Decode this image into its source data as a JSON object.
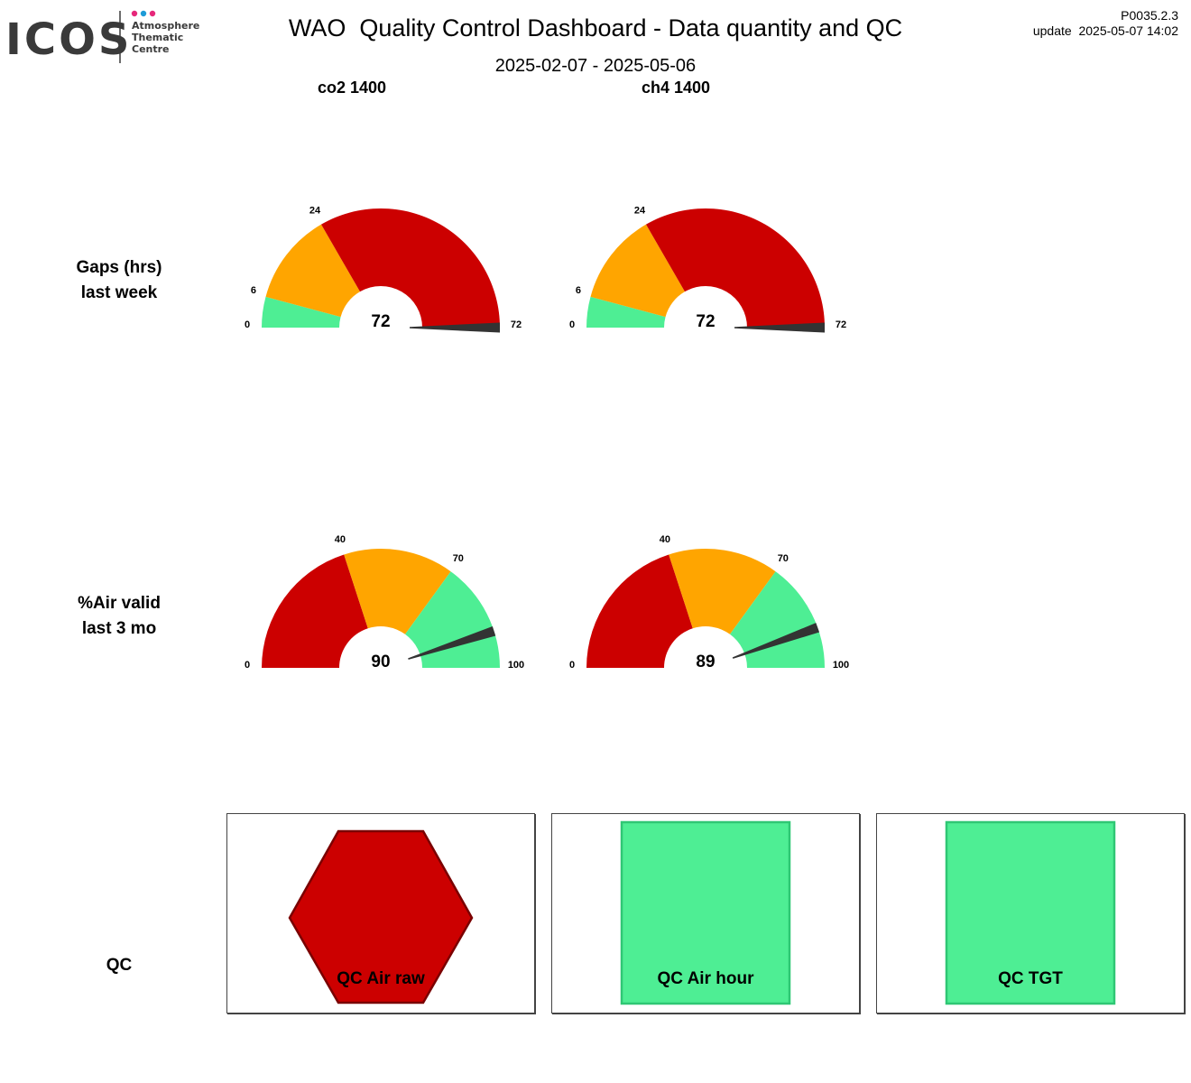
{
  "header": {
    "title": "WAO  Quality Control Dashboard - Data quantity and QC",
    "date_range": "2025-02-07 - 2025-05-06",
    "version": "P0035.2.3",
    "update": "update  2025-05-07 14:02",
    "logo_text": "ICOS",
    "logo_subtitle": [
      "Atmosphere",
      "Thematic",
      "Centre"
    ]
  },
  "columns": [
    "co2 1400",
    "ch4 1400"
  ],
  "rows": {
    "gaps_label": [
      "Gaps (hrs)",
      "last week"
    ],
    "air_label": [
      "%Air valid",
      "last 3 mo"
    ],
    "qc_label": "QC"
  },
  "colors": {
    "red": "#CC0000",
    "orange": "#FFA500",
    "green": "#4EEE94",
    "needle": "#333333",
    "logo_pink": "#E6287A",
    "logo_blue": "#1E9BD7"
  },
  "chart_data": [
    {
      "type": "gauge",
      "row": "gaps",
      "column": "co2 1400",
      "min": 0,
      "max": 72,
      "value": 72,
      "value_label": "72",
      "bands": [
        {
          "from": 0,
          "to": 6,
          "color": "green"
        },
        {
          "from": 6,
          "to": 24,
          "color": "orange"
        },
        {
          "from": 24,
          "to": 72,
          "color": "red"
        }
      ],
      "tick_labels": [
        "0",
        "6",
        "24",
        "72"
      ]
    },
    {
      "type": "gauge",
      "row": "gaps",
      "column": "ch4 1400",
      "min": 0,
      "max": 72,
      "value": 72,
      "value_label": "72",
      "bands": [
        {
          "from": 0,
          "to": 6,
          "color": "green"
        },
        {
          "from": 6,
          "to": 24,
          "color": "orange"
        },
        {
          "from": 24,
          "to": 72,
          "color": "red"
        }
      ],
      "tick_labels": [
        "0",
        "6",
        "24",
        "72"
      ]
    },
    {
      "type": "gauge",
      "row": "air",
      "column": "co2 1400",
      "min": 0,
      "max": 100,
      "value": 90,
      "value_label": "90",
      "bands": [
        {
          "from": 0,
          "to": 40,
          "color": "red"
        },
        {
          "from": 40,
          "to": 70,
          "color": "orange"
        },
        {
          "from": 70,
          "to": 100,
          "color": "green"
        }
      ],
      "tick_labels": [
        "0",
        "40",
        "70",
        "100"
      ]
    },
    {
      "type": "gauge",
      "row": "air",
      "column": "ch4 1400",
      "min": 0,
      "max": 100,
      "value": 89,
      "value_label": "89",
      "bands": [
        {
          "from": 0,
          "to": 40,
          "color": "red"
        },
        {
          "from": 40,
          "to": 70,
          "color": "orange"
        },
        {
          "from": 70,
          "to": 100,
          "color": "green"
        }
      ],
      "tick_labels": [
        "0",
        "40",
        "70",
        "100"
      ]
    }
  ],
  "qc": [
    {
      "label": "QC Air raw",
      "shape": "hexagon",
      "status_color": "red"
    },
    {
      "label": "QC Air hour",
      "shape": "square",
      "status_color": "green"
    },
    {
      "label": "QC TGT",
      "shape": "square",
      "status_color": "green"
    }
  ]
}
